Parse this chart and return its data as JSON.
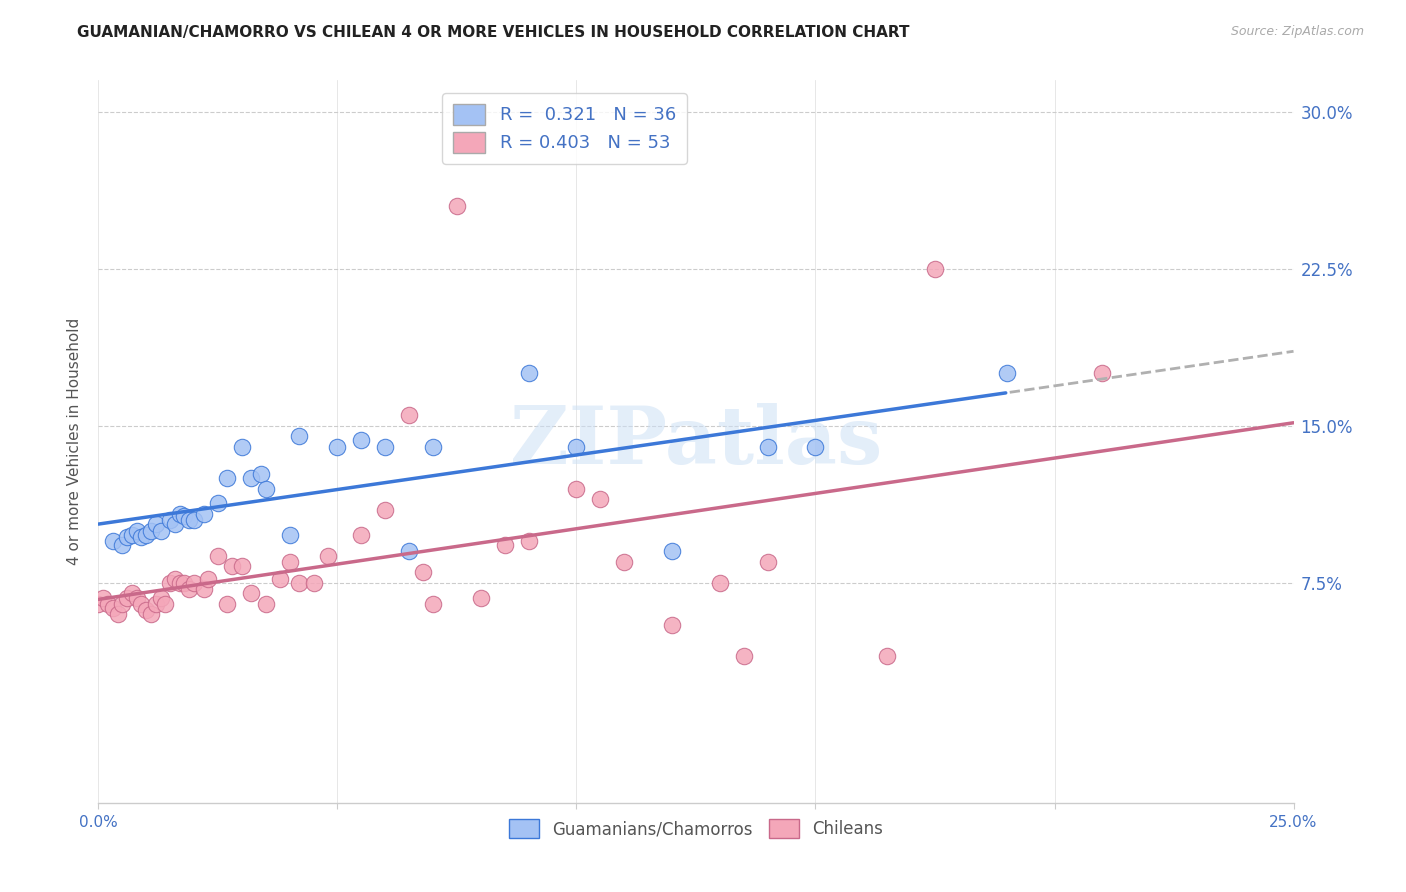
{
  "title": "GUAMANIAN/CHAMORRO VS CHILEAN 4 OR MORE VEHICLES IN HOUSEHOLD CORRELATION CHART",
  "source": "Source: ZipAtlas.com",
  "ylabel_left": "4 or more Vehicles in Household",
  "legend_label1": "Guamanians/Chamorros",
  "legend_label2": "Chileans",
  "r1": 0.321,
  "n1": 36,
  "r2": 0.403,
  "n2": 53,
  "xlim": [
    0.0,
    0.25
  ],
  "ylim": [
    -0.03,
    0.315
  ],
  "xticks": [
    0.0,
    0.05,
    0.1,
    0.15,
    0.2,
    0.25
  ],
  "yticks": [
    0.075,
    0.15,
    0.225,
    0.3
  ],
  "xtick_labels": [
    "0.0%",
    "",
    "",
    "",
    "",
    "25.0%"
  ],
  "ytick_labels": [
    "7.5%",
    "15.0%",
    "22.5%",
    "30.0%"
  ],
  "color_blue": "#a4c2f4",
  "color_pink": "#f4a7b9",
  "color_blue_line": "#3c78d8",
  "color_pink_line": "#c9698a",
  "color_gray_dashed": "#b0b0b0",
  "watermark": "ZIPatlas",
  "blue_x": [
    0.003,
    0.005,
    0.006,
    0.007,
    0.008,
    0.009,
    0.01,
    0.011,
    0.012,
    0.013,
    0.015,
    0.016,
    0.017,
    0.018,
    0.019,
    0.02,
    0.022,
    0.025,
    0.027,
    0.03,
    0.032,
    0.034,
    0.035,
    0.04,
    0.042,
    0.05,
    0.055,
    0.06,
    0.065,
    0.07,
    0.09,
    0.1,
    0.12,
    0.14,
    0.19,
    0.15
  ],
  "blue_y": [
    0.095,
    0.093,
    0.097,
    0.098,
    0.1,
    0.097,
    0.098,
    0.1,
    0.103,
    0.1,
    0.105,
    0.103,
    0.108,
    0.107,
    0.105,
    0.105,
    0.108,
    0.113,
    0.125,
    0.14,
    0.125,
    0.127,
    0.12,
    0.098,
    0.145,
    0.14,
    0.143,
    0.14,
    0.09,
    0.14,
    0.175,
    0.14,
    0.09,
    0.14,
    0.175,
    0.14
  ],
  "pink_x": [
    0.0,
    0.001,
    0.002,
    0.003,
    0.004,
    0.005,
    0.006,
    0.007,
    0.008,
    0.009,
    0.01,
    0.011,
    0.012,
    0.013,
    0.014,
    0.015,
    0.016,
    0.017,
    0.018,
    0.019,
    0.02,
    0.022,
    0.023,
    0.025,
    0.027,
    0.028,
    0.03,
    0.032,
    0.035,
    0.038,
    0.04,
    0.042,
    0.045,
    0.048,
    0.055,
    0.06,
    0.065,
    0.068,
    0.07,
    0.075,
    0.08,
    0.085,
    0.09,
    0.1,
    0.105,
    0.11,
    0.12,
    0.13,
    0.135,
    0.14,
    0.165,
    0.175,
    0.21
  ],
  "pink_y": [
    0.065,
    0.068,
    0.065,
    0.063,
    0.06,
    0.065,
    0.068,
    0.07,
    0.068,
    0.065,
    0.062,
    0.06,
    0.065,
    0.068,
    0.065,
    0.075,
    0.077,
    0.075,
    0.075,
    0.072,
    0.075,
    0.072,
    0.077,
    0.088,
    0.065,
    0.083,
    0.083,
    0.07,
    0.065,
    0.077,
    0.085,
    0.075,
    0.075,
    0.088,
    0.098,
    0.11,
    0.155,
    0.08,
    0.065,
    0.255,
    0.068,
    0.093,
    0.095,
    0.12,
    0.115,
    0.085,
    0.055,
    0.075,
    0.04,
    0.085,
    0.04,
    0.225,
    0.175
  ]
}
